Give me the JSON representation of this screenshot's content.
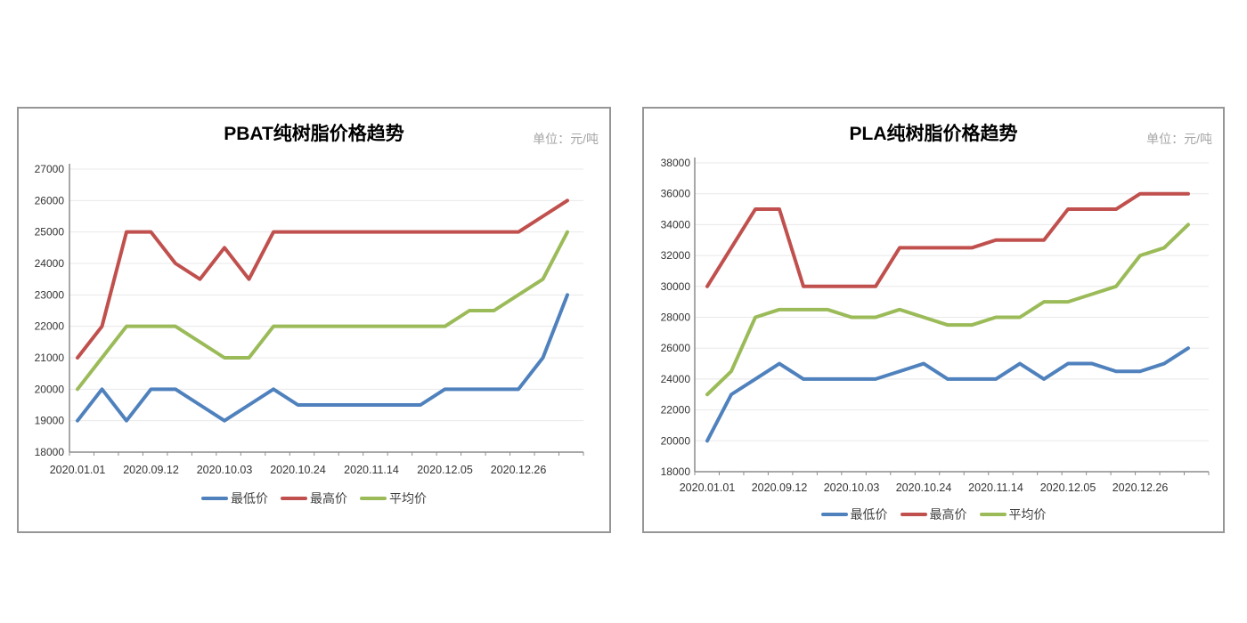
{
  "page": {
    "background": "#ffffff"
  },
  "colors": {
    "min_price": "#4F81BD",
    "max_price": "#C0504D",
    "avg_price": "#9BBB59",
    "grid": "#e8e8e8",
    "axis": "#8c8c8c",
    "panel_border": "#969696",
    "tick_label": "#333333",
    "title": "#000000",
    "unit": "#a6a6a6"
  },
  "chart_data": [
    {
      "type": "line",
      "title": "PBAT纯树脂价格趋势",
      "unit_label": "单位：元/吨",
      "xlabel": "",
      "ylabel": "",
      "grid": true,
      "legend_position": "bottom",
      "y_axis": {
        "min": 18000,
        "max": 27000,
        "step": 1000
      },
      "x_points_total": 21,
      "x_label_every_n_points": 3,
      "x_tick_labels": [
        "2020.01.01",
        "2020.09.12",
        "2020.10.03",
        "2020.10.24",
        "2020.11.14",
        "2020.12.05",
        "2020.12.26"
      ],
      "series": [
        {
          "name": "最低价",
          "color": "#4F81BD",
          "values": [
            19000,
            20000,
            19000,
            20000,
            20000,
            19500,
            19000,
            19500,
            20000,
            19500,
            19500,
            19500,
            19500,
            19500,
            19500,
            20000,
            20000,
            20000,
            20000,
            21000,
            23000
          ]
        },
        {
          "name": "最高价",
          "color": "#C0504D",
          "values": [
            21000,
            22000,
            25000,
            25000,
            24000,
            23500,
            24500,
            23500,
            25000,
            25000,
            25000,
            25000,
            25000,
            25000,
            25000,
            25000,
            25000,
            25000,
            25000,
            25500,
            26000
          ]
        },
        {
          "name": "平均价",
          "color": "#9BBB59",
          "values": [
            20000,
            21000,
            22000,
            22000,
            22000,
            21500,
            21000,
            21000,
            22000,
            22000,
            22000,
            22000,
            22000,
            22000,
            22000,
            22000,
            22500,
            22500,
            23000,
            23500,
            25000
          ]
        }
      ]
    },
    {
      "type": "line",
      "title": "PLA纯树脂价格趋势",
      "unit_label": "单位：元/吨",
      "xlabel": "",
      "ylabel": "",
      "grid": true,
      "legend_position": "bottom",
      "y_axis": {
        "min": 18000,
        "max": 38000,
        "step": 2000
      },
      "x_points_total": 21,
      "x_label_every_n_points": 3,
      "x_tick_labels": [
        "2020.01.01",
        "2020.09.12",
        "2020.10.03",
        "2020.10.24",
        "2020.11.14",
        "2020.12.05",
        "2020.12.26"
      ],
      "series": [
        {
          "name": "最低价",
          "color": "#4F81BD",
          "values": [
            20000,
            23000,
            24000,
            25000,
            24000,
            24000,
            24000,
            24000,
            24500,
            25000,
            24000,
            24000,
            24000,
            25000,
            24000,
            25000,
            25000,
            24500,
            24500,
            25000,
            26000
          ]
        },
        {
          "name": "最高价",
          "color": "#C0504D",
          "values": [
            30000,
            32500,
            35000,
            35000,
            30000,
            30000,
            30000,
            30000,
            32500,
            32500,
            32500,
            32500,
            33000,
            33000,
            33000,
            35000,
            35000,
            35000,
            36000,
            36000,
            36000
          ]
        },
        {
          "name": "平均价",
          "color": "#9BBB59",
          "values": [
            23000,
            24500,
            28000,
            28500,
            28500,
            28500,
            28000,
            28000,
            28500,
            28000,
            27500,
            27500,
            28000,
            28000,
            29000,
            29000,
            29500,
            30000,
            32000,
            32500,
            34000
          ]
        }
      ]
    }
  ]
}
